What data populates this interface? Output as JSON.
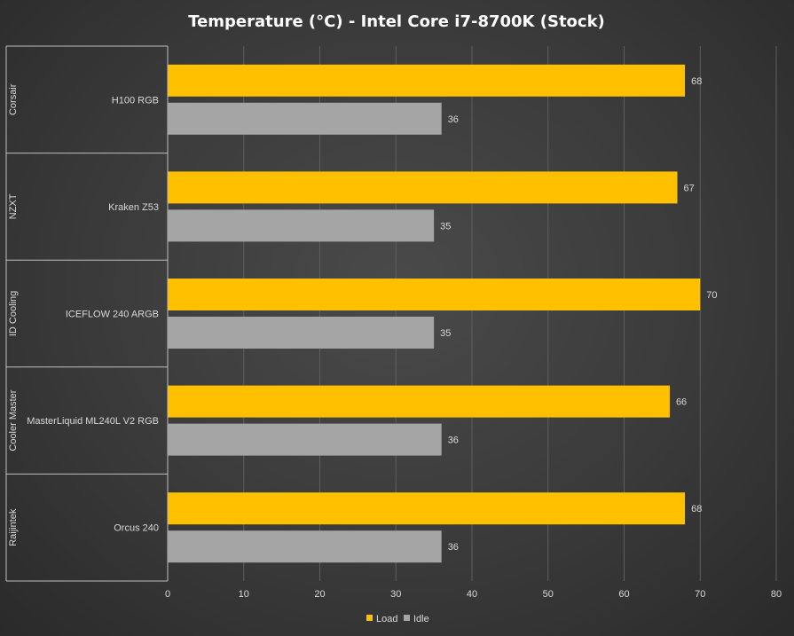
{
  "chart_data": {
    "type": "bar",
    "orientation": "horizontal",
    "title": "Temperature  (°C) - Intel Core i7-8700K  (Stock)",
    "xlim": [
      0,
      80
    ],
    "xticks": [
      0,
      10,
      20,
      30,
      40,
      50,
      60,
      70,
      80
    ],
    "grid": "vertical",
    "legend_position": "bottom",
    "groups": [
      {
        "name": "Corsair",
        "category": "H100 RGB",
        "load": 68,
        "idle": 36
      },
      {
        "name": "NZXT",
        "category": "Kraken Z53",
        "load": 67,
        "idle": 35
      },
      {
        "name": "ID Cooling",
        "category": "ICEFLOW 240 ARGB",
        "load": 70,
        "idle": 35
      },
      {
        "name": "Cooler Master",
        "category": "MasterLiquid ML240L V2 RGB",
        "load": 66,
        "idle": 36
      },
      {
        "name": "Raijintek",
        "category": "Orcus 240",
        "load": 68,
        "idle": 36
      }
    ],
    "series": [
      {
        "name": "Load",
        "key": "load",
        "color": "#ffc000"
      },
      {
        "name": "Idle",
        "key": "idle",
        "color": "#a5a5a5"
      }
    ]
  }
}
